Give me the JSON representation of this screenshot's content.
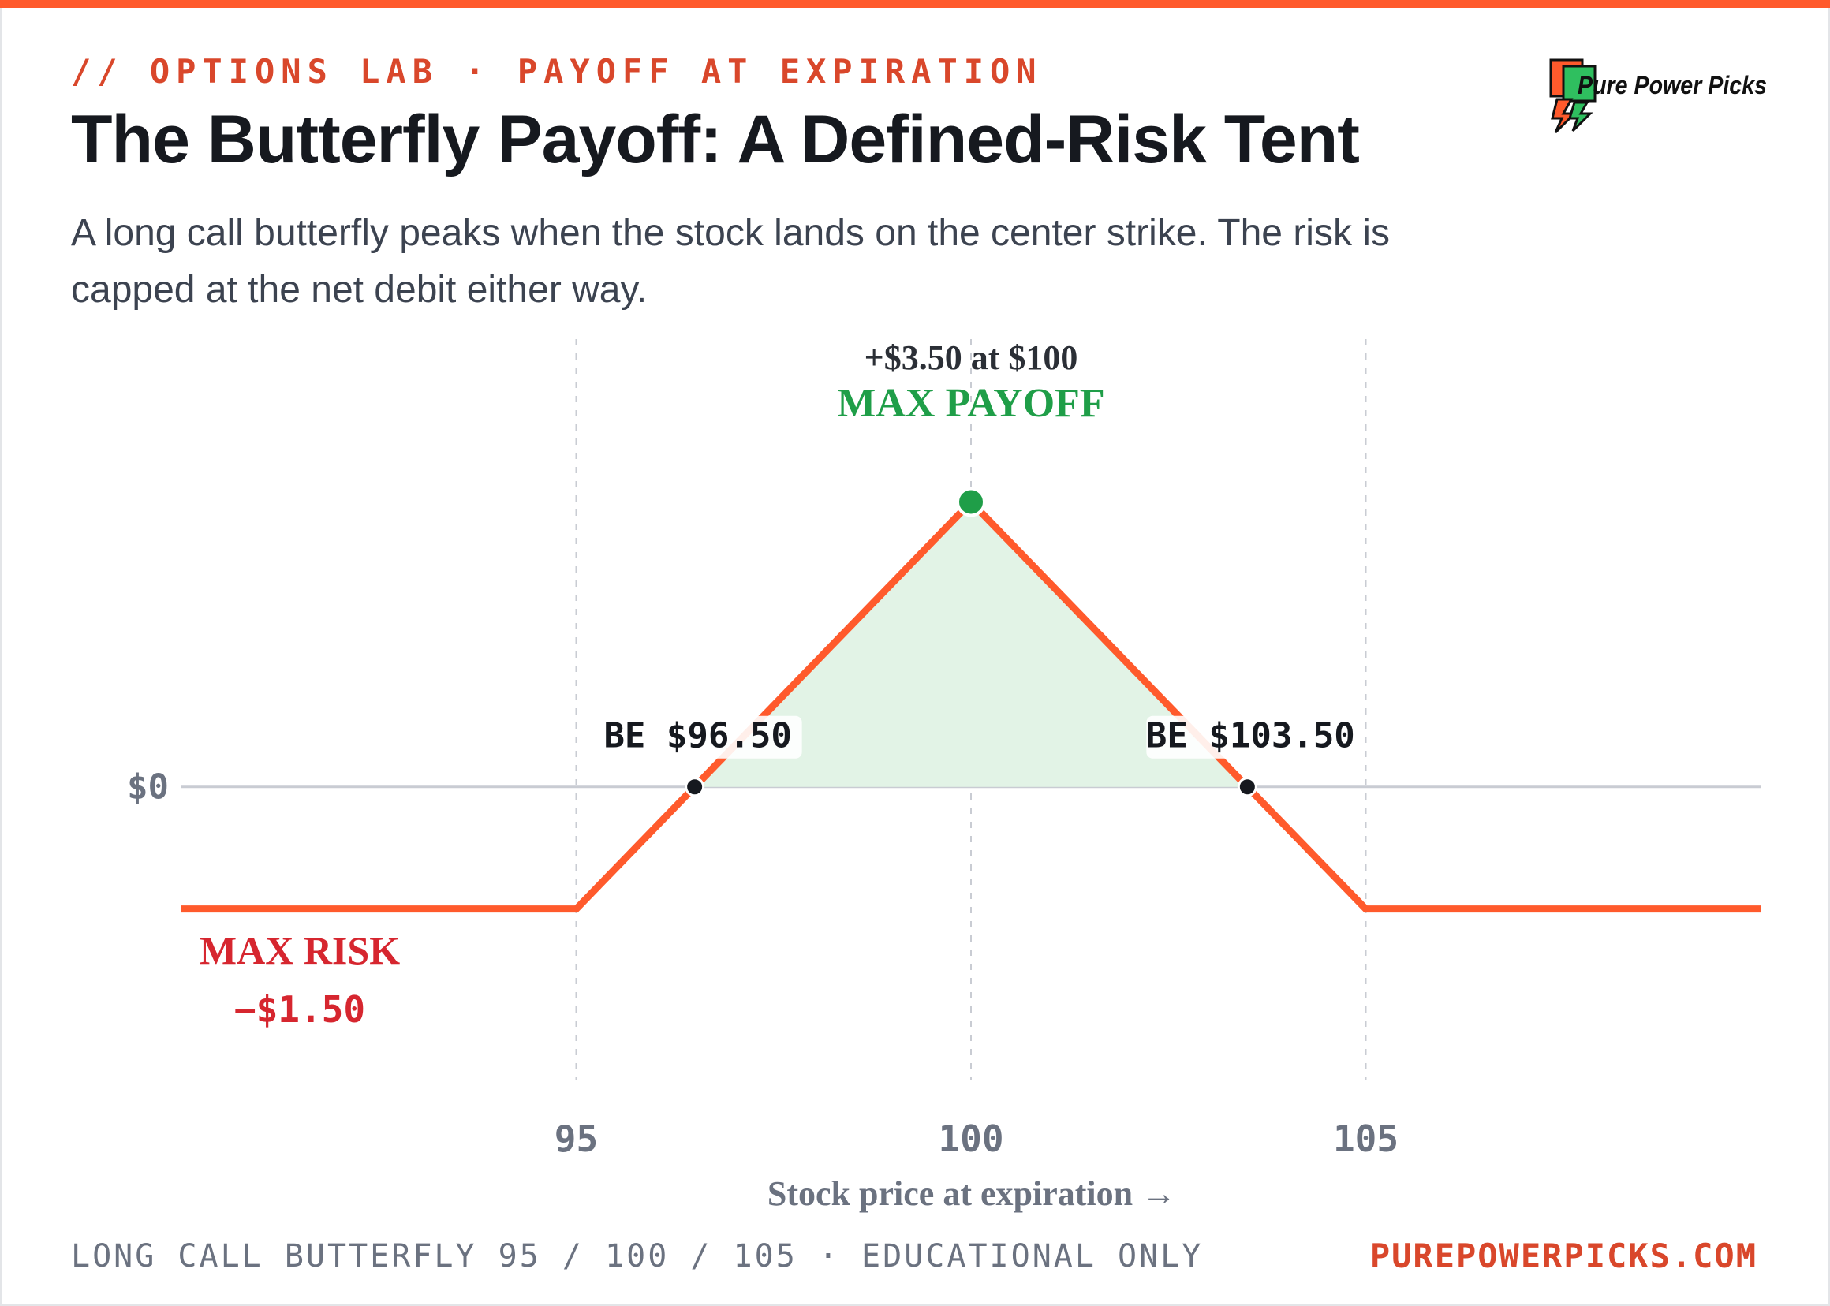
{
  "header": {
    "kicker": "// OPTIONS LAB · PAYOFF AT EXPIRATION",
    "title": "The Butterfly Payoff: A Defined-Risk Tent",
    "subtitle": "A long call butterfly peaks when the stock lands on the center strike. The risk is capped at the net debit either way."
  },
  "logo": {
    "text": "Pure Power Picks",
    "icon": "lightning-bolt-icon"
  },
  "footer": {
    "note": "LONG CALL BUTTERFLY 95 / 100 / 105 · EDUCATIONAL ONLY",
    "site": "PUREPOWERPICKS.COM"
  },
  "colors": {
    "accent": "#ff5a2c",
    "payoff_line": "#ff5a2c",
    "profit_fill": "#e2f3e6",
    "profit_text": "#1f9e48",
    "risk_text": "#d6262f",
    "axis_text": "#6b7280",
    "grid": "#c9ccd3"
  },
  "chart_data": {
    "type": "line",
    "xlabel": "Stock price at expiration →",
    "ylabel": "",
    "xlim": [
      90,
      110
    ],
    "ylim": [
      -3.8,
      5.5
    ],
    "x_ticks": [
      95,
      100,
      105
    ],
    "y_ticks": [
      {
        "value": 0,
        "label": "$0"
      }
    ],
    "series": [
      {
        "x": [
          90,
          95,
          96.5,
          100,
          103.5,
          105,
          110
        ],
        "y": [
          -1.5,
          -1.5,
          0,
          3.5,
          0,
          -1.5,
          -1.5
        ]
      }
    ],
    "annotations": {
      "max_payoff": {
        "x": 100,
        "y": 3.5,
        "label": "MAX PAYOFF",
        "value_label": "+$3.50 at $100"
      },
      "max_risk": {
        "y": -1.5,
        "label": "MAX RISK",
        "value_label": "−$1.50"
      },
      "breakevens": [
        {
          "x": 96.5,
          "label": "BE $96.50"
        },
        {
          "x": 103.5,
          "label": "BE $103.50"
        }
      ]
    }
  }
}
